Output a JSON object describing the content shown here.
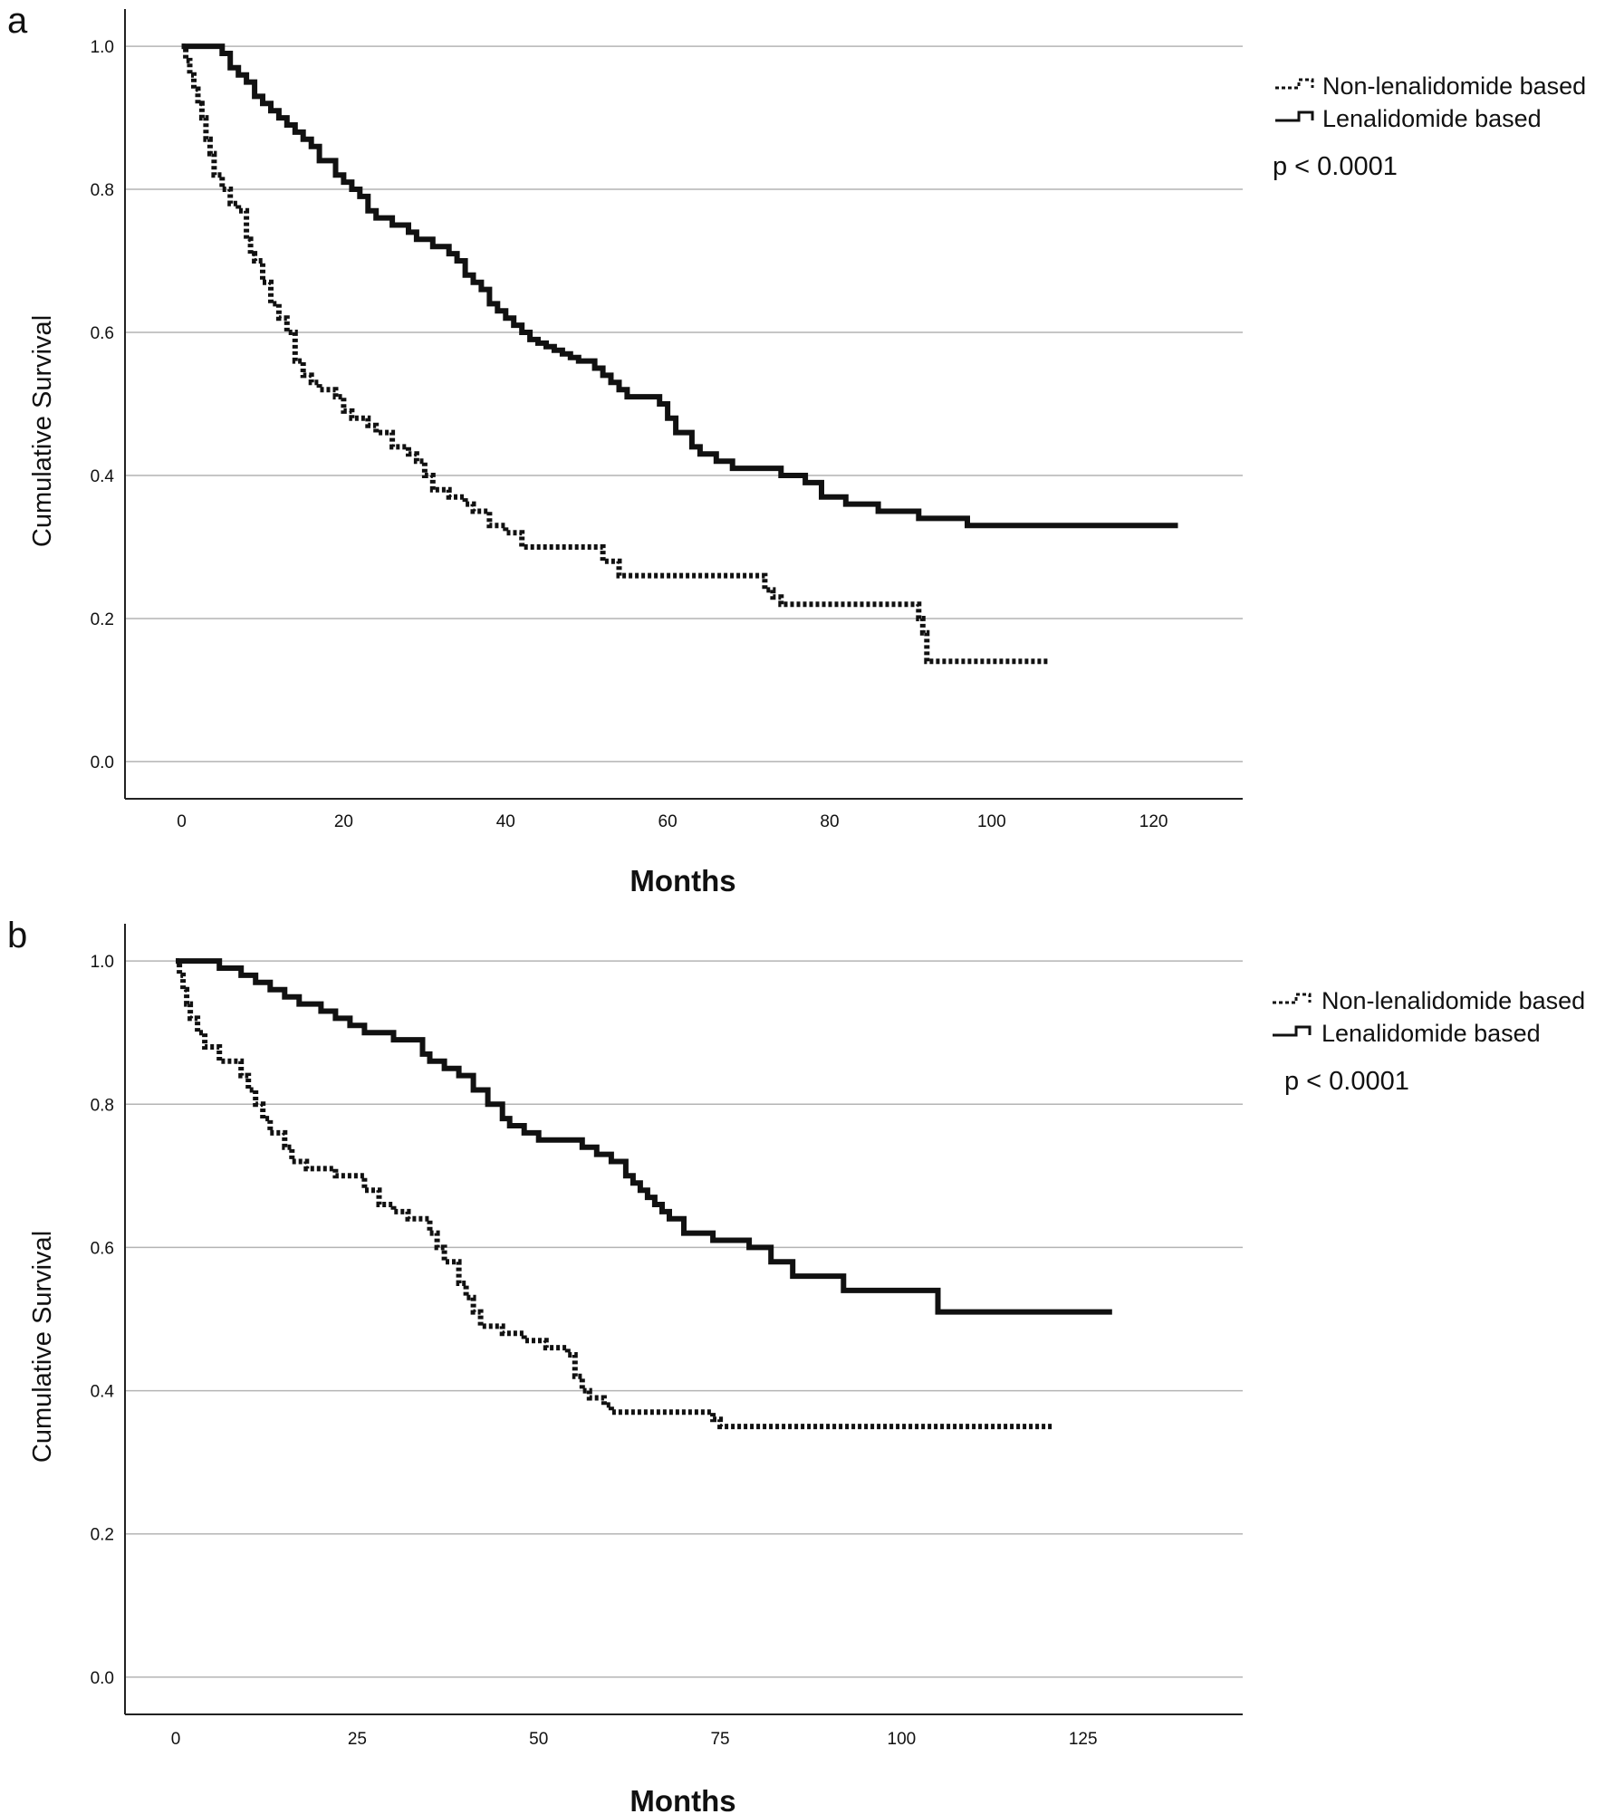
{
  "chart_data": [
    {
      "type": "line",
      "step": true,
      "panel_label": "a",
      "xlabel": "Months",
      "ylabel": "Cumulative Survival",
      "xlim": [
        -7,
        131
      ],
      "ylim": [
        -0.052,
        1.052
      ],
      "x_ticks": [
        0,
        20,
        40,
        60,
        80,
        100,
        120
      ],
      "x_tick_labels": [
        "0",
        "20",
        "40",
        "60",
        "80",
        "100",
        "120"
      ],
      "y_ticks": [
        0.0,
        0.2,
        0.4,
        0.6,
        0.8,
        1.0
      ],
      "y_tick_labels": [
        "0.0",
        "0.2",
        "0.4",
        "0.6",
        "0.8",
        "1.0"
      ],
      "grid": "horizontal",
      "legend_position": "top-right outside",
      "annotation": "p < 0.0001",
      "series": [
        {
          "name": "Non-lenalidomide based",
          "style": "dotted",
          "x": [
            0,
            0.5,
            1,
            1.5,
            2,
            2.5,
            3,
            3.5,
            4,
            5,
            6,
            7,
            8,
            8.5,
            9,
            10,
            11,
            12,
            13,
            14,
            15,
            16,
            17,
            19,
            20,
            21,
            23,
            24,
            26,
            28,
            29,
            30,
            31,
            33,
            35,
            36,
            38,
            40,
            42,
            52,
            54,
            72,
            73,
            74,
            91,
            91.5,
            92,
            107
          ],
          "y": [
            1.0,
            0.98,
            0.96,
            0.94,
            0.92,
            0.9,
            0.87,
            0.85,
            0.82,
            0.8,
            0.78,
            0.77,
            0.73,
            0.71,
            0.7,
            0.67,
            0.64,
            0.62,
            0.6,
            0.56,
            0.54,
            0.53,
            0.52,
            0.51,
            0.49,
            0.48,
            0.47,
            0.46,
            0.44,
            0.43,
            0.42,
            0.4,
            0.38,
            0.37,
            0.36,
            0.35,
            0.33,
            0.32,
            0.3,
            0.28,
            0.26,
            0.24,
            0.23,
            0.22,
            0.2,
            0.18,
            0.14,
            0.14
          ]
        },
        {
          "name": "Lenalidomide based",
          "style": "solid",
          "x": [
            0,
            5,
            6,
            7,
            8,
            9,
            10,
            11,
            12,
            13,
            14,
            15,
            16,
            17,
            19,
            20,
            21,
            22,
            23,
            24,
            26,
            28,
            29,
            31,
            33,
            34,
            35,
            36,
            37,
            38,
            39,
            40,
            41,
            42,
            43,
            44,
            45,
            46,
            47,
            48,
            49,
            51,
            52,
            53,
            54,
            55,
            59,
            60,
            61,
            63,
            64,
            66,
            68,
            74,
            77,
            79,
            82,
            86,
            91,
            97,
            123
          ],
          "y": [
            1.0,
            0.99,
            0.97,
            0.96,
            0.95,
            0.93,
            0.92,
            0.91,
            0.9,
            0.89,
            0.88,
            0.87,
            0.86,
            0.84,
            0.82,
            0.81,
            0.8,
            0.79,
            0.77,
            0.76,
            0.75,
            0.74,
            0.73,
            0.72,
            0.71,
            0.7,
            0.68,
            0.67,
            0.66,
            0.64,
            0.63,
            0.62,
            0.61,
            0.6,
            0.59,
            0.585,
            0.58,
            0.575,
            0.57,
            0.565,
            0.56,
            0.55,
            0.54,
            0.53,
            0.52,
            0.51,
            0.5,
            0.48,
            0.46,
            0.44,
            0.43,
            0.42,
            0.41,
            0.4,
            0.39,
            0.37,
            0.36,
            0.35,
            0.34,
            0.33,
            0.33
          ]
        }
      ]
    },
    {
      "type": "line",
      "step": true,
      "panel_label": "b",
      "xlabel": "Months",
      "ylabel": "Cumulative Survival",
      "xlim": [
        -7,
        147
      ],
      "ylim": [
        -0.052,
        1.052
      ],
      "x_ticks": [
        0,
        25,
        50,
        75,
        100,
        125
      ],
      "x_tick_labels": [
        "0",
        "25",
        "50",
        "75",
        "100",
        "125"
      ],
      "y_ticks": [
        0.0,
        0.2,
        0.4,
        0.6,
        0.8,
        1.0
      ],
      "y_tick_labels": [
        "0.0",
        "0.2",
        "0.4",
        "0.6",
        "0.8",
        "1.0"
      ],
      "grid": "horizontal",
      "legend_position": "top-right outside",
      "annotation": "p < 0.0001",
      "series": [
        {
          "name": "Non-lenalidomide based",
          "style": "dotted",
          "x": [
            0,
            0.5,
            1,
            1.5,
            2,
            3,
            4,
            6,
            9,
            10,
            11,
            12,
            13,
            15,
            16,
            18,
            22,
            26,
            28,
            30,
            32,
            35,
            36,
            37,
            39,
            40,
            41,
            42,
            45,
            48,
            51,
            54,
            55,
            56,
            57,
            59,
            60,
            74,
            75,
            121
          ],
          "y": [
            1.0,
            0.98,
            0.96,
            0.94,
            0.92,
            0.9,
            0.88,
            0.86,
            0.84,
            0.82,
            0.8,
            0.78,
            0.76,
            0.74,
            0.72,
            0.71,
            0.7,
            0.68,
            0.66,
            0.65,
            0.64,
            0.62,
            0.6,
            0.58,
            0.55,
            0.53,
            0.51,
            0.49,
            0.48,
            0.47,
            0.46,
            0.45,
            0.42,
            0.4,
            0.39,
            0.38,
            0.37,
            0.36,
            0.35,
            0.35
          ]
        },
        {
          "name": "Lenalidomide based",
          "style": "solid",
          "x": [
            0,
            6,
            9,
            11,
            13,
            15,
            17,
            20,
            22,
            24,
            26,
            30,
            34,
            35,
            37,
            39,
            41,
            43,
            45,
            46,
            48,
            50,
            56,
            58,
            60,
            62,
            63,
            64,
            65,
            66,
            67,
            68,
            70,
            74,
            79,
            82,
            85,
            92,
            105,
            129
          ],
          "y": [
            1.0,
            0.99,
            0.98,
            0.97,
            0.96,
            0.95,
            0.94,
            0.93,
            0.92,
            0.91,
            0.9,
            0.89,
            0.87,
            0.86,
            0.85,
            0.84,
            0.82,
            0.8,
            0.78,
            0.77,
            0.76,
            0.75,
            0.74,
            0.73,
            0.72,
            0.7,
            0.69,
            0.68,
            0.67,
            0.66,
            0.65,
            0.64,
            0.62,
            0.61,
            0.6,
            0.58,
            0.56,
            0.54,
            0.51,
            0.51
          ]
        }
      ]
    }
  ]
}
